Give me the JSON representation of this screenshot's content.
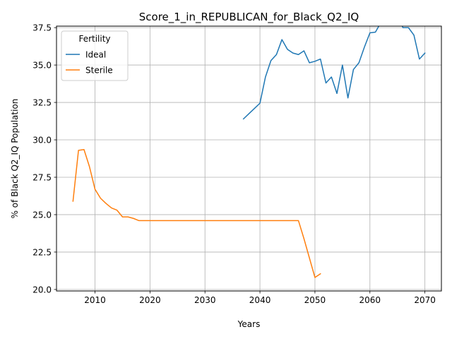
{
  "chart_data": {
    "type": "line",
    "title": "Score_1_in_REPUBLICAN_for_Black_Q2_IQ",
    "xlabel": "Years",
    "ylabel": "% of Black Q2_IQ Population",
    "xlim": [
      2003,
      2073
    ],
    "ylim": [
      19.9,
      37.6
    ],
    "xticks": [
      2010,
      2020,
      2030,
      2040,
      2050,
      2060,
      2070
    ],
    "yticks": [
      20.0,
      22.5,
      25.0,
      27.5,
      30.0,
      32.5,
      35.0,
      37.5
    ],
    "ytick_labels": [
      "20.0",
      "22.5",
      "25.0",
      "27.5",
      "30.0",
      "32.5",
      "35.0",
      "37.5"
    ],
    "grid": true,
    "legend": {
      "title": "Fertility",
      "position": "top-left"
    },
    "series": [
      {
        "name": "Ideal",
        "color": "#1f77b4",
        "x": [
          2037,
          2038,
          2039,
          2040,
          2041,
          2042,
          2043,
          2044,
          2045,
          2046,
          2047,
          2048,
          2049,
          2050,
          2051,
          2052,
          2053,
          2054,
          2055,
          2056,
          2057,
          2058,
          2059,
          2060,
          2061,
          2062,
          2063,
          2064,
          2065,
          2066,
          2067,
          2068,
          2069,
          2070
        ],
        "values": [
          31.4,
          31.75,
          32.1,
          32.45,
          34.2,
          35.3,
          35.7,
          36.7,
          36.05,
          35.8,
          35.7,
          35.95,
          35.15,
          35.25,
          35.4,
          33.8,
          34.2,
          33.1,
          35.0,
          32.8,
          34.7,
          35.15,
          36.2,
          37.15,
          37.2,
          37.85,
          38.15,
          37.85,
          38.35,
          37.5,
          37.5,
          37.0,
          35.4,
          35.8
        ]
      },
      {
        "name": "Sterile",
        "color": "#ff7f0e",
        "x": [
          2006,
          2007,
          2008,
          2009,
          2010,
          2011,
          2012,
          2013,
          2014,
          2015,
          2016,
          2017,
          2018,
          2019,
          2020,
          2025,
          2030,
          2035,
          2040,
          2045,
          2047,
          2048,
          2049,
          2050,
          2051
        ],
        "values": [
          25.9,
          29.3,
          29.35,
          28.2,
          26.7,
          26.1,
          25.75,
          25.45,
          25.3,
          24.85,
          24.85,
          24.75,
          24.6,
          24.6,
          24.6,
          24.6,
          24.6,
          24.6,
          24.6,
          24.6,
          24.6,
          23.4,
          22.1,
          20.8,
          21.05
        ]
      }
    ]
  }
}
